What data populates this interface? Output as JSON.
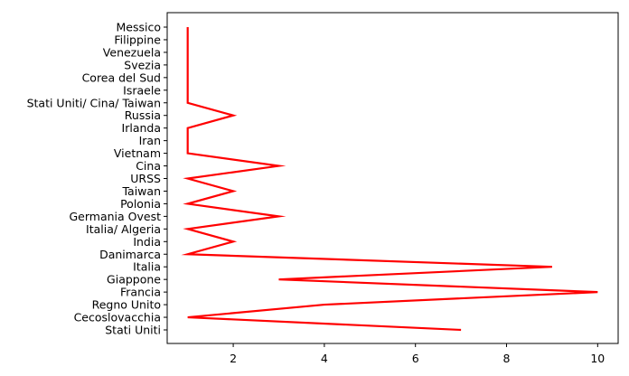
{
  "chart_data": {
    "type": "line",
    "orientation": "horizontal",
    "title": "",
    "xlabel": "",
    "ylabel": "",
    "categories": [
      "Stati Uniti",
      "Cecoslovacchia",
      "Regno Unito",
      "Francia",
      "Giappone",
      "Italia",
      "Danimarca",
      "India",
      "Italia/ Algeria",
      "Germania Ovest",
      "Polonia",
      "Taiwan",
      "URSS",
      "Cina",
      "Vietnam",
      "Iran",
      "Irlanda",
      "Russia",
      "Stati Uniti/ Cina/ Taiwan",
      "Israele",
      "Corea del Sud",
      "Svezia",
      "Venezuela",
      "Filippine",
      "Messico"
    ],
    "series": [
      {
        "values": [
          7,
          1,
          4,
          10,
          3,
          9,
          1,
          2,
          1,
          3,
          1,
          2,
          1,
          3,
          1,
          1,
          1,
          2,
          1,
          1,
          1,
          1,
          1,
          1,
          1
        ],
        "color": "#ff0000"
      }
    ],
    "xticks": [
      "2",
      "4",
      "6",
      "8",
      "10"
    ],
    "xlim": [
      0.55,
      10.45
    ],
    "grid": false,
    "legend": "none"
  }
}
